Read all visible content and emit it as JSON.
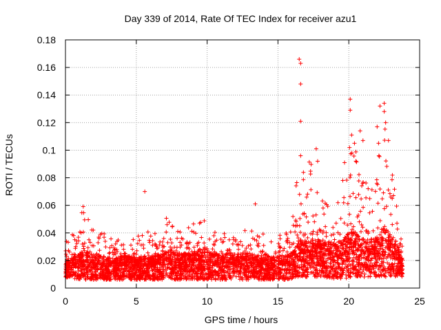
{
  "chart_data": {
    "type": "scatter",
    "title": "Day 339 of 2014, Rate Of TEC Index for receiver azu1",
    "xlabel": "GPS time / hours",
    "ylabel": "ROTI / TECUs",
    "xlim": [
      0,
      25
    ],
    "ylim": [
      0,
      0.18
    ],
    "xticks": [
      0,
      5,
      10,
      15,
      20,
      25
    ],
    "xtick_labels": [
      "0",
      "5",
      "10",
      "15",
      "20",
      "25"
    ],
    "yticks": [
      0,
      0.02,
      0.04,
      0.06,
      0.08,
      0.1,
      0.12,
      0.14,
      0.16,
      0.18
    ],
    "ytick_labels": [
      "0",
      "0.02",
      "0.04",
      "0.06",
      "0.08",
      "0.1",
      "0.12",
      "0.14",
      "0.16",
      "0.18"
    ],
    "grid": true,
    "marker": "+",
    "series": [
      {
        "name": "ROTI",
        "color": "#ff0000",
        "envelope": {
          "x": [
            0,
            0.5,
            1,
            1.3,
            1.6,
            2,
            2.5,
            3,
            3.5,
            4,
            4.5,
            5,
            5.5,
            6,
            6.5,
            7,
            7.5,
            8,
            8.5,
            9,
            9.5,
            10,
            10.5,
            11,
            11.5,
            12,
            12.5,
            13,
            13.5,
            14,
            14.5,
            15,
            15.5,
            16,
            16.5,
            17,
            17.5,
            18,
            18.5,
            19,
            19.5,
            20,
            20.3,
            20.6,
            21,
            21.5,
            22,
            22.3,
            22.6,
            23,
            23.5,
            23.8
          ],
          "max": [
            0.035,
            0.04,
            0.045,
            0.065,
            0.05,
            0.045,
            0.04,
            0.04,
            0.035,
            0.04,
            0.04,
            0.038,
            0.04,
            0.042,
            0.04,
            0.05,
            0.06,
            0.04,
            0.045,
            0.05,
            0.055,
            0.045,
            0.04,
            0.045,
            0.04,
            0.045,
            0.04,
            0.045,
            0.04,
            0.04,
            0.035,
            0.04,
            0.04,
            0.05,
            0.095,
            0.09,
            0.1,
            0.075,
            0.065,
            0.06,
            0.08,
            0.11,
            0.13,
            0.09,
            0.085,
            0.07,
            0.08,
            0.12,
            0.13,
            0.09,
            0.05,
            0.03
          ],
          "min": [
            0.008,
            0.007,
            0.006,
            0.006,
            0.006,
            0.006,
            0.006,
            0.006,
            0.006,
            0.006,
            0.006,
            0.006,
            0.006,
            0.006,
            0.006,
            0.006,
            0.006,
            0.006,
            0.006,
            0.006,
            0.006,
            0.006,
            0.006,
            0.006,
            0.006,
            0.006,
            0.006,
            0.006,
            0.006,
            0.006,
            0.006,
            0.006,
            0.006,
            0.007,
            0.008,
            0.008,
            0.008,
            0.008,
            0.007,
            0.007,
            0.007,
            0.007,
            0.008,
            0.008,
            0.008,
            0.008,
            0.008,
            0.008,
            0.008,
            0.008,
            0.008,
            0.008
          ],
          "typical": [
            0.015,
            0.016,
            0.018,
            0.02,
            0.019,
            0.018,
            0.017,
            0.016,
            0.016,
            0.017,
            0.017,
            0.016,
            0.017,
            0.017,
            0.017,
            0.018,
            0.02,
            0.018,
            0.018,
            0.019,
            0.02,
            0.019,
            0.018,
            0.018,
            0.018,
            0.018,
            0.018,
            0.018,
            0.017,
            0.017,
            0.016,
            0.017,
            0.017,
            0.019,
            0.025,
            0.026,
            0.026,
            0.025,
            0.024,
            0.023,
            0.024,
            0.028,
            0.03,
            0.027,
            0.026,
            0.025,
            0.026,
            0.03,
            0.032,
            0.026,
            0.02,
            0.016
          ]
        },
        "notable_points": [
          {
            "x": 5.6,
            "y": 0.07
          },
          {
            "x": 13.4,
            "y": 0.061
          },
          {
            "x": 16.5,
            "y": 0.166
          },
          {
            "x": 16.6,
            "y": 0.163
          },
          {
            "x": 16.6,
            "y": 0.148
          },
          {
            "x": 16.6,
            "y": 0.121
          },
          {
            "x": 16.6,
            "y": 0.096
          },
          {
            "x": 17.7,
            "y": 0.101
          },
          {
            "x": 17.8,
            "y": 0.092
          },
          {
            "x": 20.1,
            "y": 0.137
          },
          {
            "x": 20.1,
            "y": 0.129
          },
          {
            "x": 20.2,
            "y": 0.111
          },
          {
            "x": 20.4,
            "y": 0.105
          },
          {
            "x": 20.8,
            "y": 0.114
          },
          {
            "x": 21.0,
            "y": 0.107
          },
          {
            "x": 22.2,
            "y": 0.132
          },
          {
            "x": 22.5,
            "y": 0.134
          },
          {
            "x": 22.5,
            "y": 0.128
          },
          {
            "x": 22.6,
            "y": 0.12
          },
          {
            "x": 22.0,
            "y": 0.117
          },
          {
            "x": 22.1,
            "y": 0.105
          },
          {
            "x": 22.8,
            "y": 0.107
          },
          {
            "x": 23.4,
            "y": 0.047
          }
        ]
      }
    ]
  }
}
